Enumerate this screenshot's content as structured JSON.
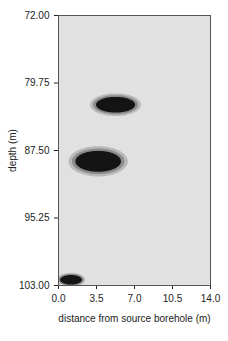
{
  "chart_data": {
    "type": "ellipse",
    "x_label": "distance from source borehole (m)",
    "y_label": "depth (m)",
    "xlim": [
      0,
      14
    ],
    "ylim": [
      72,
      103
    ],
    "xticks": [
      {
        "value": 0,
        "label": "0.0"
      },
      3.5,
      {
        "value": 7,
        "label": "7.0"
      },
      10.5,
      {
        "value": 14,
        "label": "14.0"
      }
    ],
    "yticks": [
      {
        "value": 72,
        "label": "72.00"
      },
      {
        "value": 79.75,
        "label": "79.75"
      },
      {
        "value": 87.5,
        "label": "87.50"
      },
      {
        "value": 95.25,
        "label": "95.25"
      },
      {
        "value": 103,
        "label": "103.00"
      }
    ],
    "color": "#141414",
    "anomalies": [
      {
        "x": 5.3,
        "y": 82.3,
        "x_radius": 1.8,
        "y_radius": 0.9
      },
      {
        "x": 3.7,
        "y": 88.8,
        "x_radius": 2.1,
        "y_radius": 1.2
      },
      {
        "x": 1.2,
        "y": 102.4,
        "x_radius": 1.0,
        "y_radius": 0.55
      }
    ]
  }
}
